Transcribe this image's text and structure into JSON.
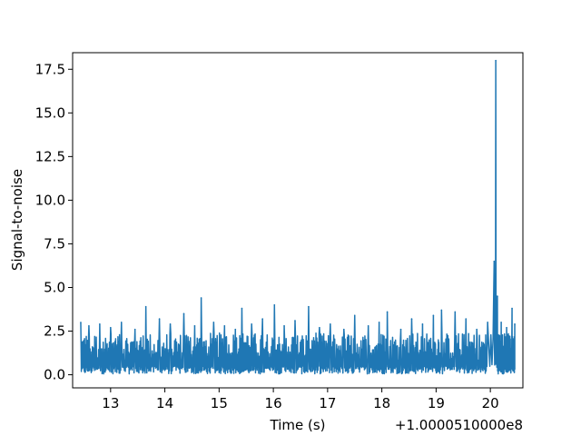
{
  "chart_data": {
    "type": "line",
    "title": "",
    "xlabel": "Time (s)",
    "ylabel": "Signal-to-noise",
    "x_offset_label": "+1.0000510000e8",
    "xlim": [
      12.3,
      20.6
    ],
    "ylim": [
      -0.75,
      18.45
    ],
    "xticks": [
      13,
      14,
      15,
      16,
      17,
      18,
      19,
      20
    ],
    "xtick_labels": [
      "13",
      "14",
      "15",
      "16",
      "17",
      "18",
      "19",
      "20"
    ],
    "yticks": [
      0.0,
      2.5,
      5.0,
      7.5,
      10.0,
      12.5,
      15.0,
      17.5
    ],
    "ytick_labels": [
      "0.0",
      "2.5",
      "5.0",
      "7.5",
      "10.0",
      "12.5",
      "15.0",
      "17.5"
    ],
    "grid": false,
    "legend": "none",
    "series": [
      {
        "color": "#1f77b4",
        "x": [
          12.45,
          12.6,
          12.8,
          13.0,
          13.2,
          13.45,
          13.65,
          13.9,
          14.1,
          14.35,
          14.55,
          14.67,
          14.9,
          15.1,
          15.3,
          15.42,
          15.6,
          15.8,
          16.02,
          16.2,
          16.4,
          16.65,
          16.85,
          17.05,
          17.3,
          17.5,
          17.75,
          17.95,
          18.1,
          18.35,
          18.55,
          18.75,
          18.95,
          19.1,
          19.35,
          19.55,
          19.75,
          19.95,
          20.07,
          20.1,
          20.13,
          20.2,
          20.3,
          20.4,
          20.45
        ],
        "y": [
          3.0,
          2.8,
          2.9,
          2.7,
          3.0,
          2.6,
          3.9,
          3.2,
          2.9,
          3.5,
          2.8,
          4.4,
          3.0,
          2.8,
          2.6,
          3.8,
          2.9,
          3.2,
          4.0,
          2.8,
          3.1,
          3.9,
          2.7,
          2.9,
          2.6,
          3.4,
          2.8,
          3.0,
          3.6,
          2.6,
          3.2,
          2.9,
          3.4,
          3.7,
          3.6,
          3.2,
          2.6,
          3.0,
          6.5,
          18.0,
          4.5,
          3.0,
          2.7,
          3.8,
          2.9
        ]
      }
    ]
  }
}
